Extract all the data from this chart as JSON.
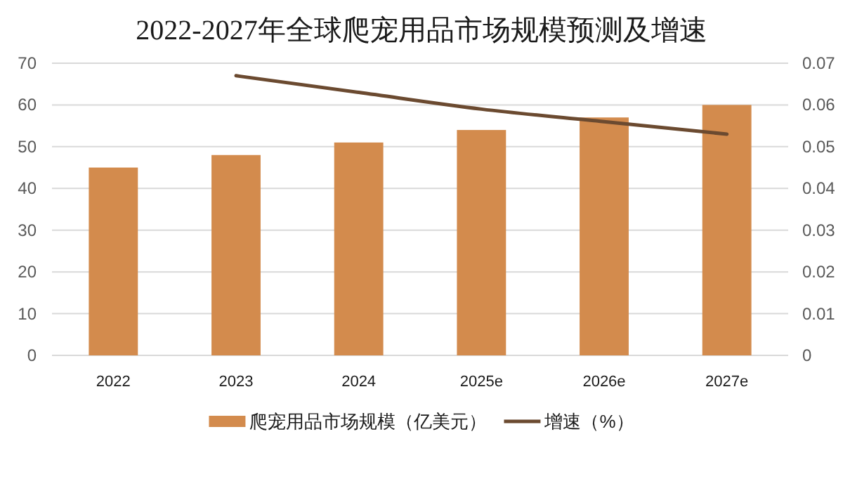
{
  "chart_data": {
    "type": "bar",
    "title": "2022-2027年全球爬宠用品市场规模预测及增速",
    "categories": [
      "2022",
      "2023",
      "2024",
      "2025e",
      "2026e",
      "2027e"
    ],
    "series": [
      {
        "name": "爬宠用品市场规模（亿美元）",
        "color": "#d38b4d",
        "values": [
          45,
          48,
          51,
          54,
          57,
          60
        ]
      },
      {
        "name": "增速（%）",
        "type": "line",
        "axis": "y2",
        "color": "#6b4a30",
        "line_style": "solid",
        "values": [
          null,
          0.067,
          0.063,
          0.059,
          0.056,
          0.053
        ]
      }
    ],
    "ylim": [
      0,
      70
    ],
    "yticks": [
      0,
      10,
      20,
      30,
      40,
      50,
      60,
      70
    ],
    "y2lim": [
      0,
      0.07
    ],
    "y2ticks": [
      0,
      0.01,
      0.02,
      0.03,
      0.04,
      0.05,
      0.06,
      0.07
    ],
    "grid": "y",
    "legend": "bottom"
  }
}
